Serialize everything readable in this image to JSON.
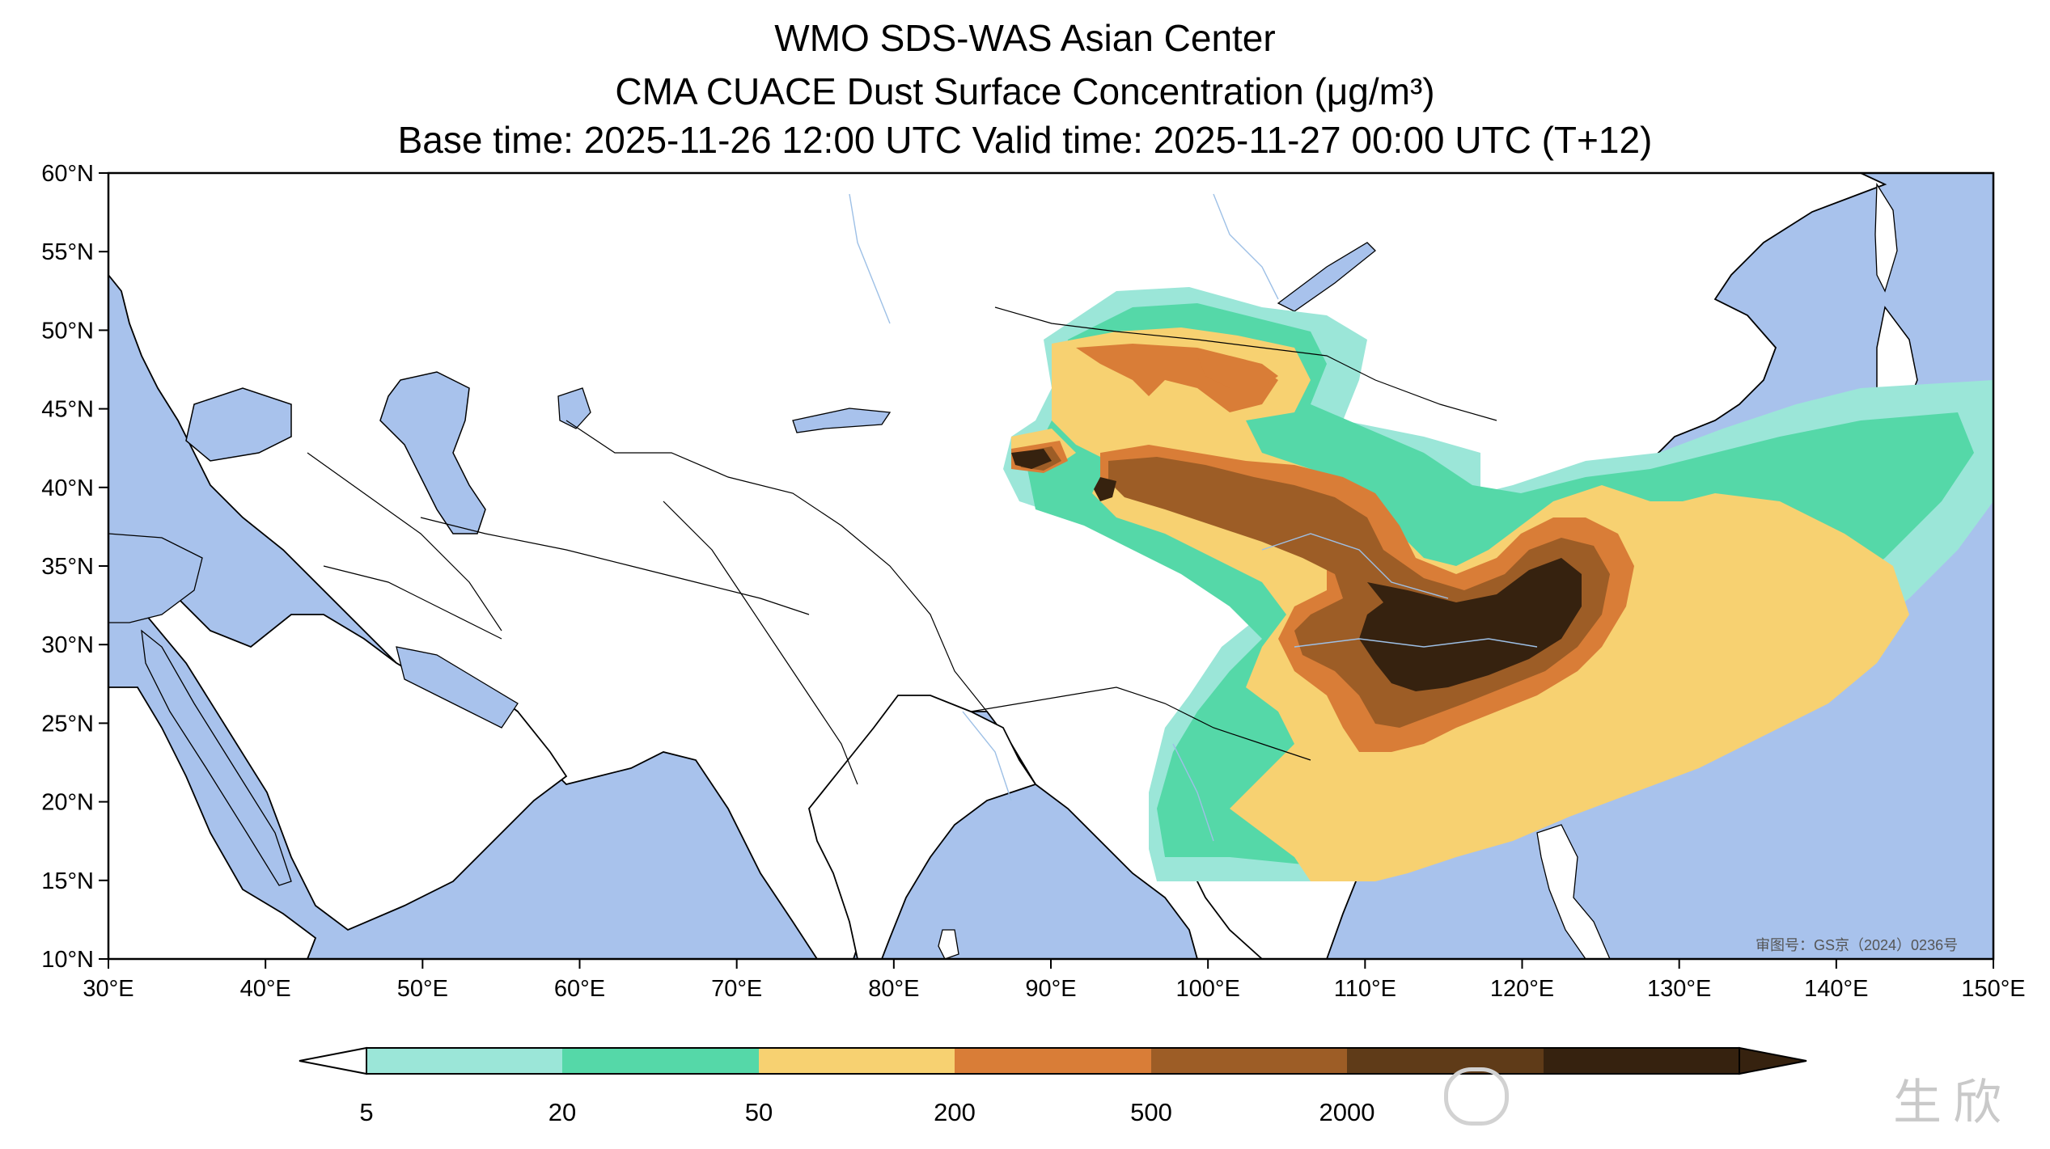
{
  "titles": {
    "line1": "WMO SDS-WAS Asian Center",
    "line2": "CMA CUACE Dust Surface Concentration (μg/m³)",
    "line3": "Base time: 2025-11-26 12:00 UTC Valid time: 2025-11-27 00:00 UTC (T+12)"
  },
  "map": {
    "lon_range": [
      30,
      150
    ],
    "lat_range": [
      10,
      60
    ],
    "lon_ticks": [
      "30°E",
      "40°E",
      "50°E",
      "60°E",
      "70°E",
      "80°E",
      "90°E",
      "100°E",
      "110°E",
      "120°E",
      "130°E",
      "140°E",
      "150°E"
    ],
    "lat_ticks": [
      "60°N",
      "55°N",
      "50°N",
      "45°N",
      "40°N",
      "35°N",
      "30°N",
      "25°N",
      "20°N",
      "15°N",
      "10°N"
    ],
    "land_color": "#ffffff",
    "water_color": "#a8c2ec",
    "approval_number": "审图号：GS京（2024）0236号"
  },
  "colorbar": {
    "labels": [
      "5",
      "20",
      "50",
      "200",
      "500",
      "2000"
    ],
    "colors": [
      "#9be6d8",
      "#55d8a8",
      "#f7d171",
      "#d97d37",
      "#9d5d26",
      "#5f3b18",
      "#36220f"
    ],
    "extend": "both"
  },
  "watermark": {
    "text": "生欣"
  },
  "icons": {
    "watermark_logo": "weibo-logo-icon"
  }
}
